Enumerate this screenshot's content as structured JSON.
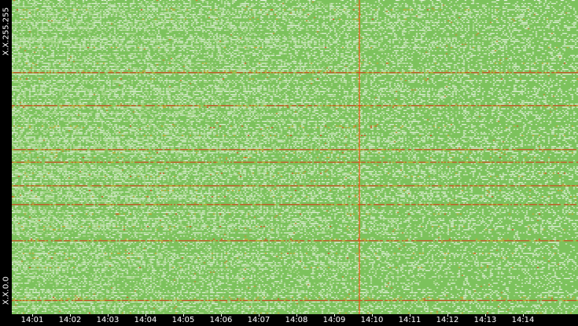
{
  "chart_data": {
    "type": "heatmap",
    "y_axis_labels": {
      "top": "X.X.255.255",
      "bottom": "X.X.0.0"
    },
    "x_ticks": [
      "14:01",
      "14:02",
      "14:03",
      "14:04",
      "14:05",
      "14:06",
      "14:07",
      "14:08",
      "14:09",
      "14:10",
      "14:11",
      "14:12",
      "14:13",
      "14:14"
    ],
    "x_range_minutes": [
      14.0,
      14.95
    ],
    "marker_time": "14:09:40",
    "intensity_scale": [
      "#ffffff",
      "#7cc25c",
      "#e8a020",
      "#ff2000"
    ],
    "highlight_rows_fraction": [
      0.23,
      0.335,
      0.475,
      0.515,
      0.59,
      0.65,
      0.765,
      0.955
    ],
    "colors": {
      "background": "#000000",
      "low": "#ffffff",
      "mid": "#7cc25c",
      "high": "#ff2000",
      "marker_line": "#ff4000"
    }
  }
}
